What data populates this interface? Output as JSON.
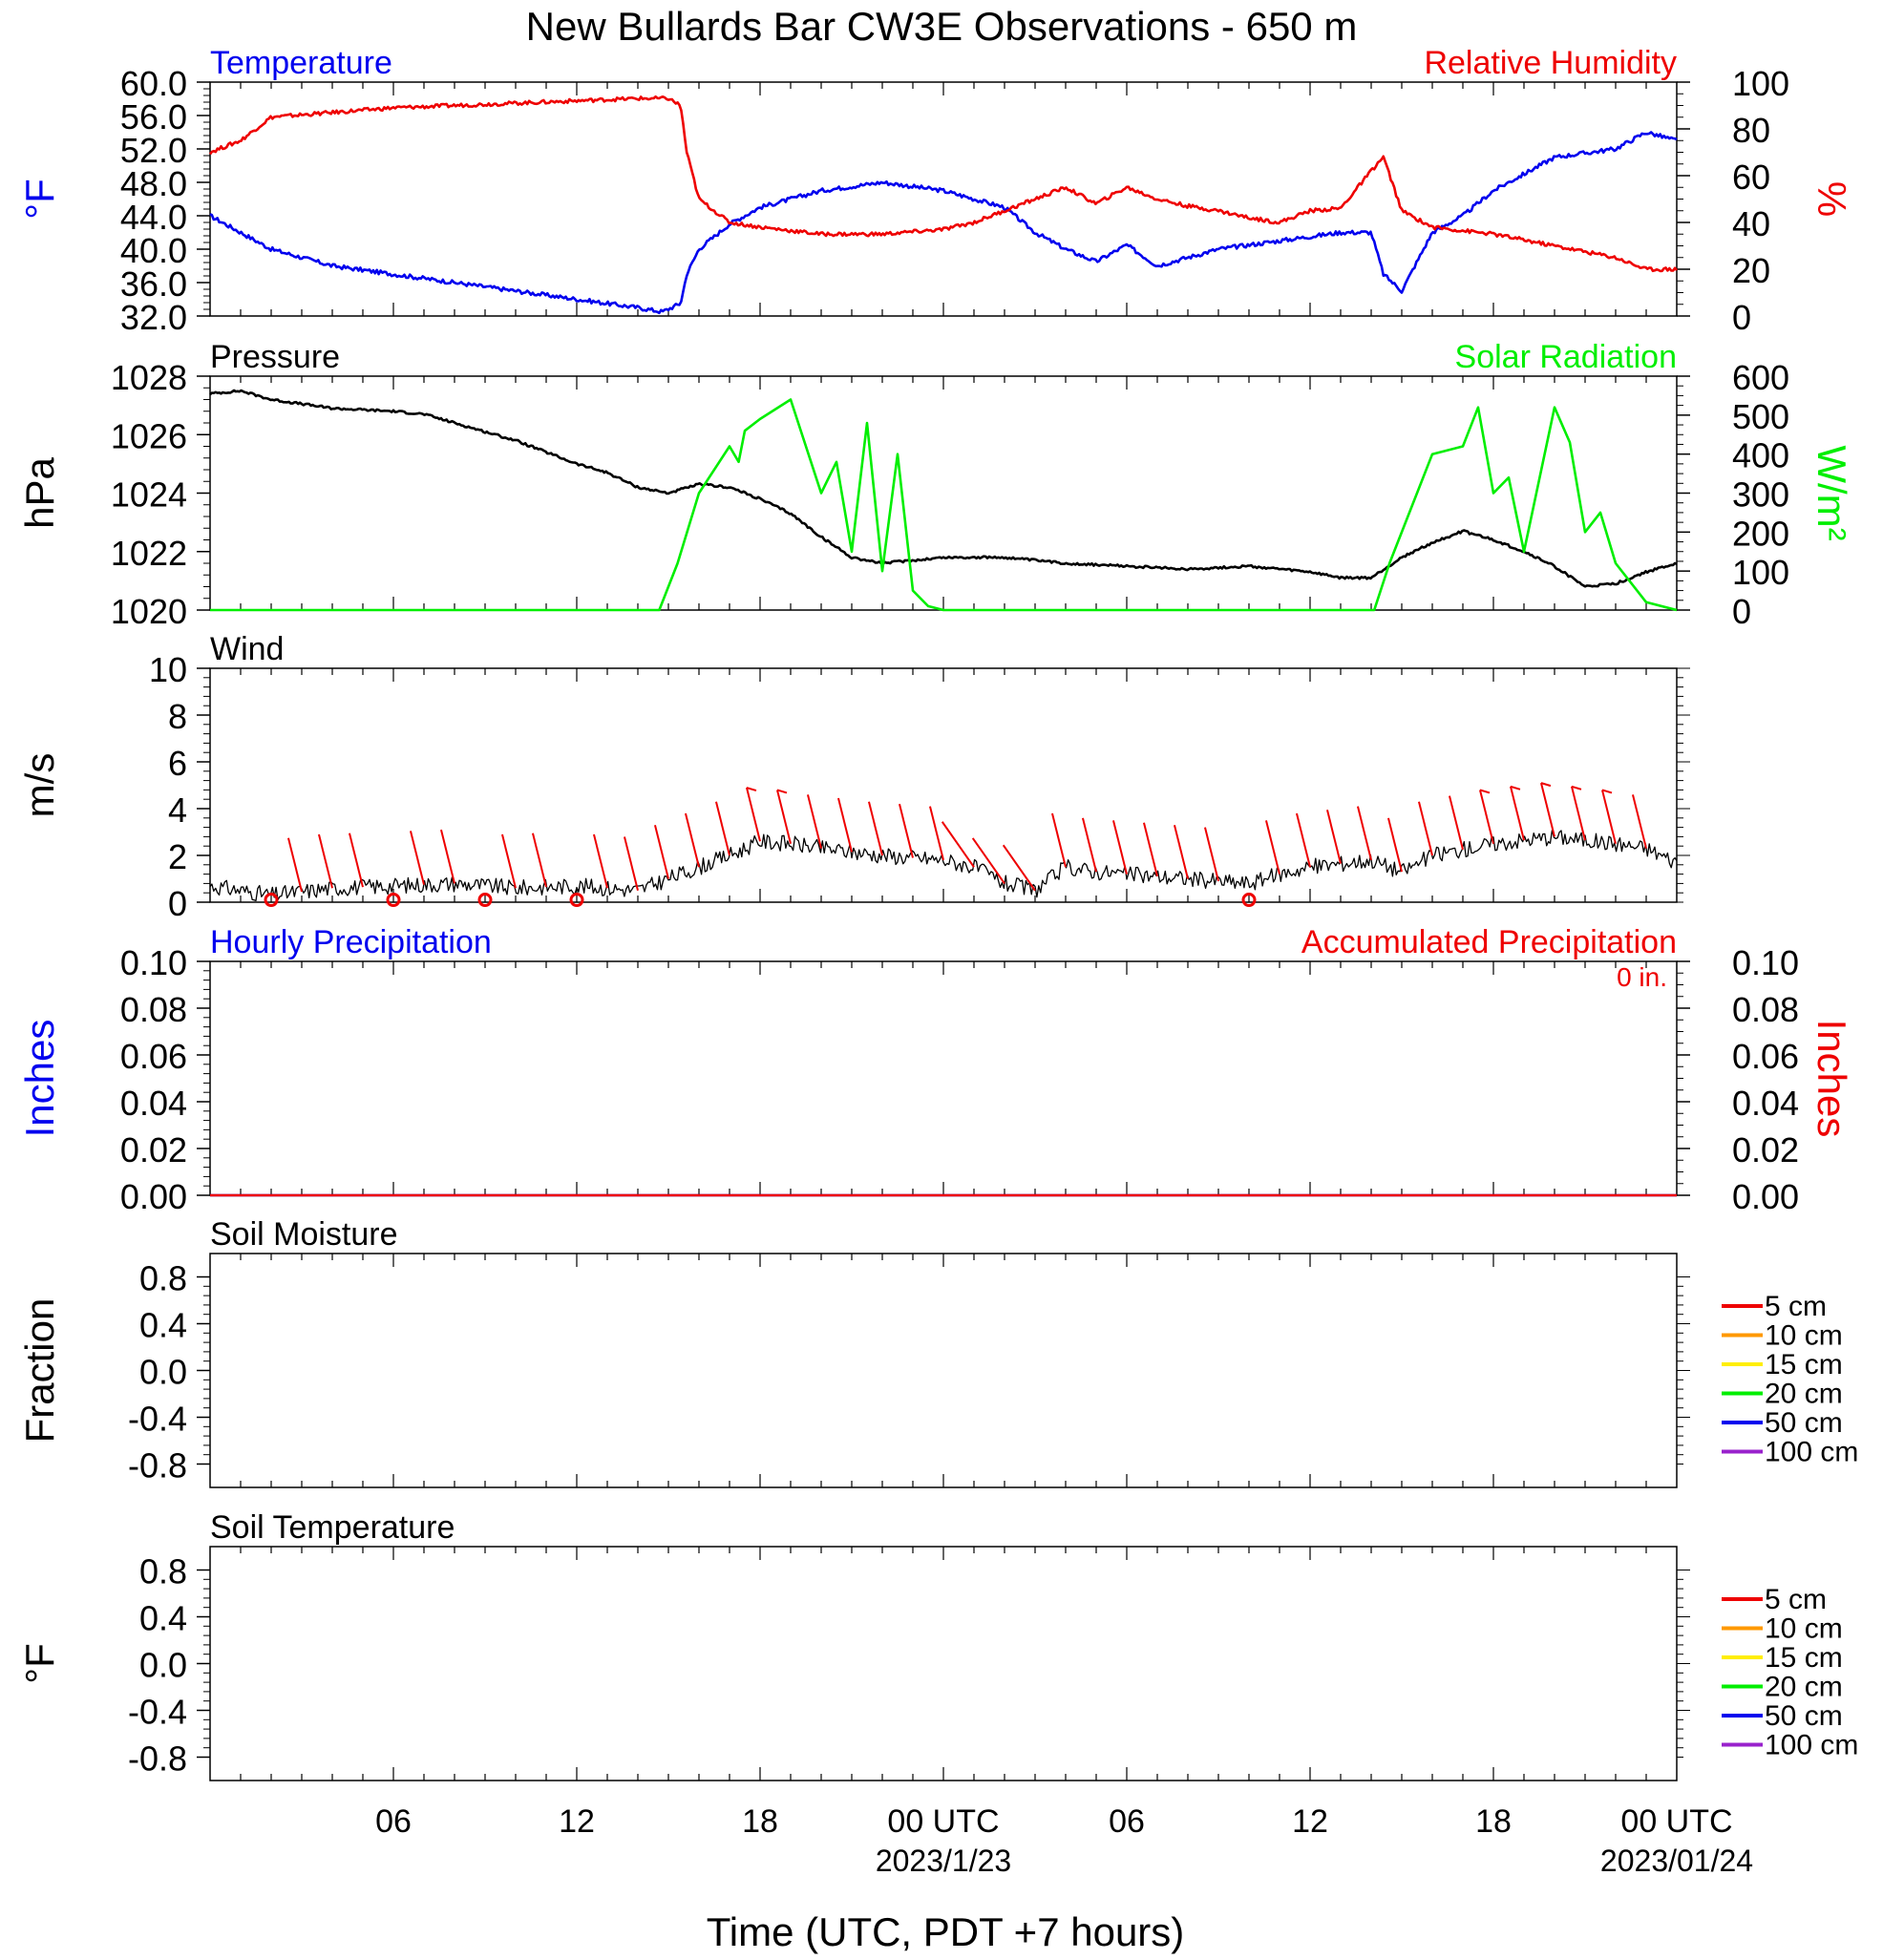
{
  "title": "New Bullards Bar CW3E Observations - 650 m",
  "xaxis": {
    "label": "Time (UTC, PDT +7 hours)",
    "ticks": [
      "06",
      "12",
      "18",
      "00 UTC",
      "06",
      "12",
      "18",
      "00 UTC"
    ],
    "date_labels": [
      "2023/1/23",
      "2023/01/24"
    ]
  },
  "colors": {
    "blue": "#0000ee",
    "red": "#ee0000",
    "green": "#00ee00",
    "black": "#000000",
    "orange": "#ff9900",
    "yellow": "#ffee00",
    "purple": "#9922cc"
  },
  "chart_data": [
    {
      "type": "line",
      "name": "temperature-humidity",
      "title_left": "Temperature",
      "title_right": "Relative Humidity",
      "ylabel_left": "°F",
      "ylabel_right": "%",
      "ylim_left": [
        32,
        60
      ],
      "ylim_right": [
        0,
        100
      ],
      "yticks_left": [
        "60.0",
        "56.0",
        "52.0",
        "48.0",
        "44.0",
        "40.0",
        "36.0",
        "32.0"
      ],
      "yticks_right": [
        "100",
        "80",
        "60",
        "40",
        "20",
        "0"
      ],
      "series": [
        {
          "name": "Temperature",
          "axis": "left",
          "x": [
            0,
            1,
            2,
            4,
            6,
            8,
            10,
            12,
            14,
            14.8,
            15.4,
            15.6,
            16,
            17,
            18,
            20,
            22,
            24,
            26,
            27,
            28,
            29,
            30,
            31,
            32,
            33,
            34,
            35,
            36,
            37,
            38,
            38.4,
            39,
            40,
            41,
            42,
            44,
            46,
            47,
            48
          ],
          "y": [
            44,
            42,
            40,
            38,
            37,
            36,
            35,
            34,
            33,
            32.5,
            33.5,
            37,
            40,
            43,
            45,
            47,
            48,
            47,
            45,
            42,
            40,
            38.5,
            40.5,
            38,
            39,
            40,
            40.5,
            41,
            41.5,
            42,
            42,
            37,
            35,
            42,
            44,
            47,
            51,
            52,
            54,
            53
          ]
        },
        {
          "name": "Relative Humidity",
          "axis": "right",
          "x": [
            0,
            1,
            2,
            4,
            6,
            8,
            10,
            12,
            14,
            15,
            15.4,
            15.6,
            16,
            17,
            18,
            20,
            22,
            24,
            25,
            26,
            27,
            28,
            29,
            30,
            31,
            32,
            33,
            34,
            35,
            36,
            37,
            38,
            38.4,
            39,
            40,
            42,
            44,
            46,
            47,
            48
          ],
          "y": [
            70,
            75,
            85,
            87,
            89,
            90,
            91,
            92,
            93,
            93,
            90,
            70,
            50,
            40,
            38,
            35,
            35,
            37,
            40,
            45,
            50,
            55,
            48,
            55,
            50,
            47,
            45,
            42,
            40,
            45,
            46,
            62,
            68,
            45,
            38,
            35,
            30,
            25,
            20,
            20
          ]
        }
      ]
    },
    {
      "type": "line",
      "name": "pressure-solar",
      "title_left": "Pressure",
      "title_right": "Solar Radiation",
      "ylabel_left": "hPa",
      "ylabel_right": "W/m²",
      "ylim_left": [
        1020,
        1028
      ],
      "ylim_right": [
        0,
        600
      ],
      "yticks_left": [
        "1028",
        "1026",
        "1024",
        "1022",
        "1020"
      ],
      "yticks_right": [
        "600",
        "500",
        "400",
        "300",
        "200",
        "100",
        "0"
      ],
      "series": [
        {
          "name": "Pressure",
          "axis": "left",
          "x": [
            0,
            1,
            2,
            4,
            6,
            7,
            8,
            9,
            10,
            11,
            12,
            13,
            14,
            15,
            16,
            17,
            18,
            19,
            20,
            21,
            22,
            24,
            26,
            28,
            30,
            32,
            34,
            36,
            37,
            38,
            39,
            40,
            41,
            42,
            43,
            44,
            45,
            46,
            47,
            48
          ],
          "y": [
            1027.4,
            1027.5,
            1027.2,
            1026.9,
            1026.8,
            1026.7,
            1026.4,
            1026.1,
            1025.8,
            1025.4,
            1025.0,
            1024.7,
            1024.2,
            1024.0,
            1024.3,
            1024.2,
            1023.8,
            1023.3,
            1022.5,
            1021.8,
            1021.6,
            1021.8,
            1021.8,
            1021.6,
            1021.5,
            1021.4,
            1021.5,
            1021.3,
            1021.1,
            1021.1,
            1021.8,
            1022.3,
            1022.7,
            1022.4,
            1022.0,
            1021.5,
            1020.8,
            1020.9,
            1021.3,
            1021.6
          ]
        },
        {
          "name": "Solar Radiation",
          "axis": "right",
          "x": [
            0,
            14.7,
            15.3,
            16,
            17,
            17.3,
            17.5,
            18,
            19,
            20,
            20.5,
            21,
            21.5,
            22,
            22.5,
            23,
            23.5,
            24,
            25,
            38.1,
            38.6,
            40,
            41,
            41.5,
            42,
            42.5,
            43,
            44,
            44.5,
            45,
            45.5,
            46,
            47,
            48
          ],
          "y": [
            0,
            0,
            120,
            300,
            420,
            380,
            460,
            490,
            540,
            300,
            380,
            150,
            480,
            100,
            400,
            50,
            10,
            0,
            0,
            0,
            120,
            400,
            420,
            520,
            300,
            340,
            150,
            520,
            430,
            200,
            250,
            120,
            20,
            0
          ]
        }
      ]
    },
    {
      "type": "line",
      "name": "wind",
      "title_left": "Wind",
      "ylabel_left": "m/s",
      "ylim_left": [
        0,
        10
      ],
      "yticks_left": [
        "10",
        "8",
        "6",
        "4",
        "2",
        "0"
      ],
      "series": [
        {
          "name": "Wind",
          "axis": "left",
          "x": [
            0,
            2,
            4,
            6,
            8,
            10,
            12,
            14,
            15,
            16,
            17,
            18,
            19,
            20,
            22,
            24,
            25,
            26,
            27,
            28,
            29,
            30,
            32,
            34,
            35,
            36,
            38,
            39,
            40,
            42,
            44,
            46,
            47,
            48
          ],
          "y": [
            0.7,
            0.3,
            0.6,
            0.7,
            0.8,
            0.6,
            0.7,
            0.5,
            1.0,
            1.5,
            2.0,
            2.6,
            2.5,
            2.3,
            2.0,
            1.8,
            1.5,
            0.8,
            0.5,
            1.5,
            1.3,
            1.2,
            1.0,
            0.8,
            1.2,
            1.5,
            1.8,
            1.3,
            2.0,
            2.5,
            2.8,
            2.5,
            2.3,
            1.7
          ]
        }
      ]
    },
    {
      "type": "line",
      "name": "precipitation",
      "title_left": "Hourly Precipitation",
      "title_right": "Accumulated Precipitation",
      "note_right": "0 in.",
      "ylabel_left": "Inches",
      "ylabel_right": "Inches",
      "ylim_left": [
        0,
        0.1
      ],
      "ylim_right": [
        0,
        0.1
      ],
      "yticks_left": [
        "0.10",
        "0.08",
        "0.06",
        "0.04",
        "0.02",
        "0.00"
      ],
      "yticks_right": [
        "0.10",
        "0.08",
        "0.06",
        "0.04",
        "0.02",
        "0.00"
      ],
      "series": [
        {
          "name": "Hourly Precipitation",
          "axis": "left",
          "x": [
            0,
            48
          ],
          "y": [
            0,
            0
          ]
        },
        {
          "name": "Accumulated Precipitation",
          "axis": "right",
          "x": [
            0,
            48
          ],
          "y": [
            0,
            0
          ]
        }
      ]
    },
    {
      "type": "line",
      "name": "soil-moisture",
      "title_left": "Soil Moisture",
      "ylabel_left": "Fraction",
      "ylim_left": [
        -1,
        1
      ],
      "yticks_left": [
        "0.8",
        "0.4",
        "0.0",
        "-0.4",
        "-0.8"
      ],
      "legend": [
        "5 cm",
        "10 cm",
        "15 cm",
        "20 cm",
        "50 cm",
        "100 cm"
      ],
      "series": []
    },
    {
      "type": "line",
      "name": "soil-temperature",
      "title_left": "Soil Temperature",
      "ylabel_left": "°F",
      "ylim_left": [
        -1,
        1
      ],
      "yticks_left": [
        "0.8",
        "0.4",
        "0.0",
        "-0.4",
        "-0.8"
      ],
      "legend": [
        "5 cm",
        "10 cm",
        "15 cm",
        "20 cm",
        "50 cm",
        "100 cm"
      ],
      "series": []
    }
  ]
}
